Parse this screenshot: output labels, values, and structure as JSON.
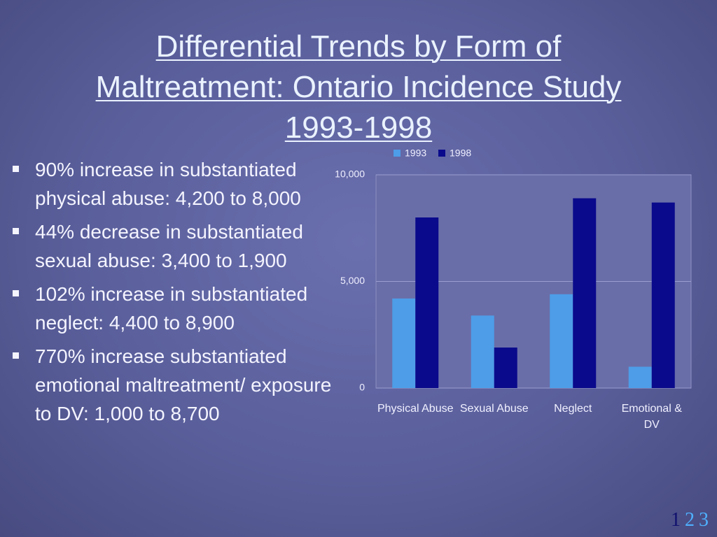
{
  "title": "Differential Trends by Form of Maltreatment: Ontario Incidence Study 1993-1998",
  "bullets": [
    "90% increase in substantiated physical abuse: 4,200 to 8,000",
    "44% decrease in substantiated sexual abuse: 3,400 to 1,900",
    "102% increase in substantiated neglect: 4,400 to 8,900",
    "770% increase substantiated emotional maltreatment/ exposure to DV: 1,000 to 8,700"
  ],
  "pages": [
    "1",
    "2",
    "3"
  ],
  "chart_data": {
    "type": "bar",
    "categories": [
      "Physical Abuse",
      "Sexual Abuse",
      "Neglect",
      "Emotional & DV"
    ],
    "series": [
      {
        "name": "1993",
        "color": "#4d9de8",
        "values": [
          4200,
          3400,
          4400,
          1000
        ]
      },
      {
        "name": "1998",
        "color": "#0a0a8c",
        "values": [
          8000,
          1900,
          8900,
          8700
        ]
      }
    ],
    "ylim": [
      0,
      10000
    ],
    "yticks": [
      0,
      {
        "value": 5000,
        "label": "5,000"
      },
      {
        "value": 10000,
        "label": "10,000"
      }
    ],
    "grid": true,
    "legend": "top"
  }
}
